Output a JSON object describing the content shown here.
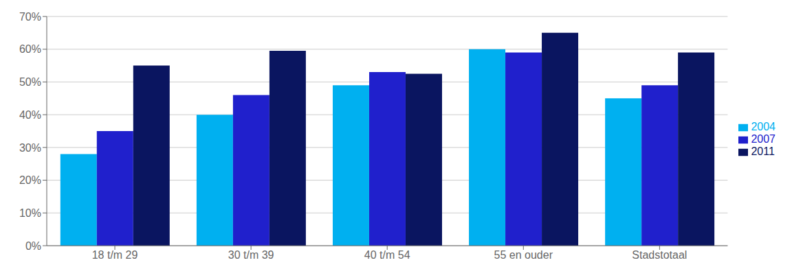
{
  "chart_data": {
    "type": "bar",
    "categories": [
      "18 t/m 29",
      "30 t/m 39",
      "40 t/m 54",
      "55 en ouder",
      "Stadstotaal"
    ],
    "series": [
      {
        "name": "2004",
        "color": "#00B0F0",
        "values": [
          0.28,
          0.4,
          0.49,
          0.6,
          0.45
        ]
      },
      {
        "name": "2007",
        "color": "#2020CC",
        "values": [
          0.35,
          0.46,
          0.53,
          0.59,
          0.49
        ]
      },
      {
        "name": "2011",
        "color": "#0A1560",
        "values": [
          0.55,
          0.595,
          0.525,
          0.65,
          0.59
        ]
      }
    ],
    "ylim": [
      0,
      0.7
    ],
    "yticks": [
      {
        "value": 0.0,
        "label": "0%"
      },
      {
        "value": 0.1,
        "label": "10%"
      },
      {
        "value": 0.2,
        "label": "20%"
      },
      {
        "value": 0.3,
        "label": "30%"
      },
      {
        "value": 0.4,
        "label": "40%"
      },
      {
        "value": 0.5,
        "label": "50%"
      },
      {
        "value": 0.6,
        "label": "60%"
      },
      {
        "value": 0.7,
        "label": "70%"
      }
    ],
    "grid": true,
    "legend": "right"
  }
}
